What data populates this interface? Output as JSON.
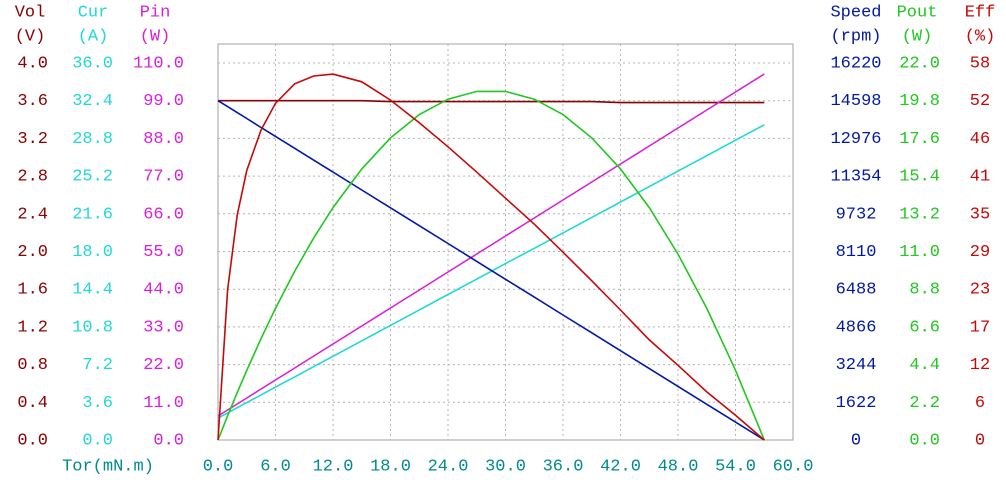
{
  "chart_data": {
    "type": "line",
    "x_label": "Tor(mN.m)",
    "xlim": [
      0,
      60
    ],
    "xticks": [
      {
        "value": 0,
        "label": "0.0"
      },
      {
        "value": 6,
        "label": "6.0"
      },
      {
        "value": 12,
        "label": "12.0"
      },
      {
        "value": 18,
        "label": "18.0"
      },
      {
        "value": 24,
        "label": "24.0"
      },
      {
        "value": 30,
        "label": "30.0"
      },
      {
        "value": 36,
        "label": "36.0"
      },
      {
        "value": 42,
        "label": "42.0"
      },
      {
        "value": 48,
        "label": "48.0"
      },
      {
        "value": 54,
        "label": "54.0"
      },
      {
        "value": 60,
        "label": "60.0"
      }
    ],
    "grid": true,
    "x": [
      0,
      1,
      2,
      3,
      4.5,
      6,
      8,
      10,
      12,
      15,
      18,
      21,
      24,
      27,
      30,
      33,
      36,
      39,
      42,
      45,
      48,
      51,
      54,
      57
    ],
    "series": [
      {
        "name": "Vol",
        "unit": "(V)",
        "color": "#8b0000",
        "ylim": [
          0,
          4
        ],
        "yticks": [
          {
            "value": 0,
            "label": "0.0"
          },
          0.4,
          0.8,
          1.2,
          1.6,
          {
            "value": 2,
            "label": "2.0"
          },
          2.4,
          2.8,
          3.2,
          3.6,
          {
            "value": 4,
            "label": "4.0"
          }
        ],
        "values": [
          3.6,
          3.6,
          3.6,
          3.6,
          3.6,
          3.6,
          3.6,
          3.6,
          3.6,
          3.6,
          3.59,
          3.59,
          3.59,
          3.59,
          3.59,
          3.59,
          3.59,
          3.59,
          3.58,
          3.58,
          3.58,
          3.58,
          3.58,
          3.58
        ]
      },
      {
        "name": "Cur",
        "unit": "(A)",
        "color": "#20d8d8",
        "ylim": [
          0,
          36
        ],
        "yticks": [
          {
            "value": 0,
            "label": "0.0"
          },
          3.6,
          7.2,
          10.8,
          14.4,
          {
            "value": 18,
            "label": "18.0"
          },
          21.6,
          25.2,
          28.8,
          32.4,
          {
            "value": 36,
            "label": "36.0"
          }
        ],
        "values": [
          2.1,
          2.59,
          3.08,
          3.57,
          4.31,
          5.05,
          6.03,
          7.01,
          7.99,
          9.47,
          10.94,
          12.42,
          13.89,
          15.36,
          16.84,
          18.31,
          19.78,
          21.26,
          22.73,
          24.2,
          25.68,
          27.15,
          28.63,
          30.1
        ]
      },
      {
        "name": "Pin",
        "unit": "(W)",
        "color": "#d820d8",
        "ylim": [
          0,
          110
        ],
        "yticks": [
          {
            "value": 0,
            "label": "0.0"
          },
          {
            "value": 11,
            "label": "11.0"
          },
          {
            "value": 22,
            "label": "22.0"
          },
          {
            "value": 33,
            "label": "33.0"
          },
          {
            "value": 44,
            "label": "44.0"
          },
          {
            "value": 55,
            "label": "55.0"
          },
          {
            "value": 66,
            "label": "66.0"
          },
          {
            "value": 77,
            "label": "77.0"
          },
          {
            "value": 88,
            "label": "88.0"
          },
          {
            "value": 99,
            "label": "99.0"
          },
          {
            "value": 110,
            "label": "110.0"
          }
        ],
        "values": [
          7,
          8.75,
          10.5,
          12.25,
          14.88,
          17.51,
          21.01,
          24.51,
          28.01,
          33.26,
          38.52,
          43.77,
          49.02,
          54.27,
          59.53,
          64.78,
          70.03,
          75.29,
          80.54,
          85.79,
          91.04,
          96.3,
          101.55,
          106.8
        ]
      },
      {
        "name": "Speed",
        "unit": "(rpm)",
        "color": "#0018a8",
        "ylim": [
          0,
          16220
        ],
        "yticks": [
          0,
          1622,
          3244,
          4866,
          6488,
          8110,
          9732,
          11354,
          12976,
          14598,
          16220
        ],
        "values": [
          14600,
          14344,
          14088,
          13832,
          13447,
          13063,
          12551,
          12039,
          11526,
          10758,
          9989,
          9221,
          8453,
          7684,
          6916,
          6147,
          5379,
          4611,
          3842,
          3074,
          2305,
          1537,
          768,
          0
        ]
      },
      {
        "name": "Pout",
        "unit": "(W)",
        "color": "#20c820",
        "ylim": [
          0,
          22
        ],
        "yticks": [
          {
            "value": 0,
            "label": "0.0"
          },
          2.2,
          4.4,
          6.6,
          8.8,
          {
            "value": 11,
            "label": "11.0"
          },
          13.2,
          15.4,
          17.6,
          19.8,
          {
            "value": 22,
            "label": "22.0"
          }
        ],
        "values": [
          0,
          1.41,
          2.76,
          4.07,
          5.93,
          7.68,
          9.85,
          11.8,
          13.56,
          15.82,
          17.63,
          18.99,
          19.89,
          20.34,
          20.34,
          19.89,
          18.99,
          17.63,
          15.82,
          13.56,
          10.85,
          7.68,
          4.07,
          0
        ]
      },
      {
        "name": "Eff",
        "unit": "(%)",
        "color": "#c80808",
        "ylim": [
          0,
          58
        ],
        "yticks": [
          0,
          {
            "value": 5.8,
            "label": "6"
          },
          {
            "value": 11.6,
            "label": "12"
          },
          {
            "value": 17.4,
            "label": "17"
          },
          {
            "value": 23.2,
            "label": "23"
          },
          29,
          {
            "value": 34.8,
            "label": "35"
          },
          {
            "value": 40.6,
            "label": "41"
          },
          {
            "value": 46.4,
            "label": "46"
          },
          {
            "value": 52.2,
            "label": "52"
          },
          58
        ],
        "values": [
          0,
          23.1,
          34.6,
          41.5,
          47.7,
          51.8,
          54.8,
          56,
          56.3,
          55.1,
          52.3,
          48.8,
          45.1,
          41.2,
          37.2,
          33.2,
          28.9,
          24.5,
          20,
          15.4,
          11.5,
          7.4,
          3.8,
          0
        ]
      }
    ]
  }
}
